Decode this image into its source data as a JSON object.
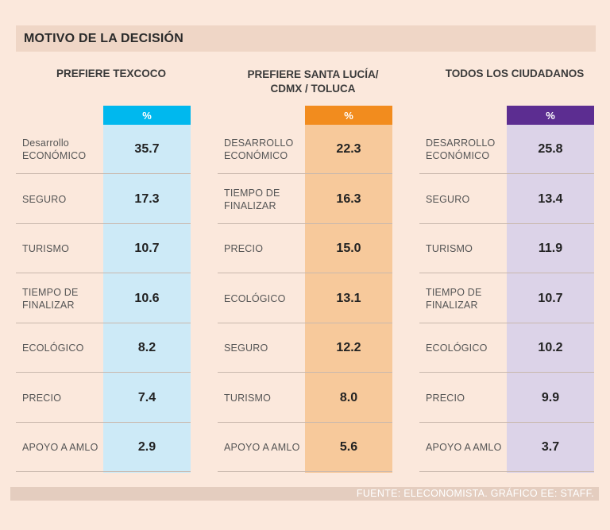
{
  "title": "MOTIVO DE LA DECISIÓN",
  "source": "FUENTE: ELECONOMISTA. GRÁFICO EE: STAFF.",
  "chart_data": {
    "type": "table",
    "title": "MOTIVO DE LA DECISIÓN",
    "unit_label": "%",
    "panels": [
      {
        "header": [
          "PREFIERE TEXCOCO"
        ],
        "accent": "#00b8ee",
        "fill": "#cdeaf7",
        "rows": [
          {
            "label": [
              "Desarrollo",
              "ECONÓMICO"
            ],
            "value": "35.7"
          },
          {
            "label": [
              "SEGURO"
            ],
            "value": "17.3"
          },
          {
            "label": [
              "TURISMO"
            ],
            "value": "10.7"
          },
          {
            "label": [
              "TIEMPO DE",
              "FINALIZAR"
            ],
            "value": "10.6"
          },
          {
            "label": [
              "ECOLÓGICO"
            ],
            "value": "8.2"
          },
          {
            "label": [
              "PRECIO"
            ],
            "value": "7.4"
          },
          {
            "label": [
              "APOYO A AMLO"
            ],
            "value": "2.9"
          }
        ]
      },
      {
        "header": [
          "PREFIERE SANTA LUCÍA/",
          "CDMX / TOLUCA"
        ],
        "accent": "#f28c1e",
        "fill": "#f7c99b",
        "rows": [
          {
            "label": [
              "DESARROLLO",
              "ECONÓMICO"
            ],
            "value": "22.3"
          },
          {
            "label": [
              "TIEMPO DE",
              "FINALIZAR"
            ],
            "value": "16.3"
          },
          {
            "label": [
              "PRECIO"
            ],
            "value": "15.0"
          },
          {
            "label": [
              "ECOLÓGICO"
            ],
            "value": "13.1"
          },
          {
            "label": [
              "SEGURO"
            ],
            "value": "12.2"
          },
          {
            "label": [
              "TURISMO"
            ],
            "value": "8.0"
          },
          {
            "label": [
              "APOYO A AMLO"
            ],
            "value": "5.6"
          }
        ]
      },
      {
        "header": [
          "TODOS LOS CIUDADANOS"
        ],
        "accent": "#5c2d91",
        "fill": "#dcd3e8",
        "rows": [
          {
            "label": [
              "DESARROLLO",
              "ECONÓMICO"
            ],
            "value": "25.8"
          },
          {
            "label": [
              "SEGURO"
            ],
            "value": "13.4"
          },
          {
            "label": [
              "TURISMO"
            ],
            "value": "11.9"
          },
          {
            "label": [
              "TIEMPO DE",
              "FINALIZAR"
            ],
            "value": "10.7"
          },
          {
            "label": [
              "ECOLÓGICO"
            ],
            "value": "10.2"
          },
          {
            "label": [
              "PRECIO"
            ],
            "value": "9.9"
          },
          {
            "label": [
              "APOYO A AMLO"
            ],
            "value": "3.7"
          }
        ]
      }
    ]
  }
}
